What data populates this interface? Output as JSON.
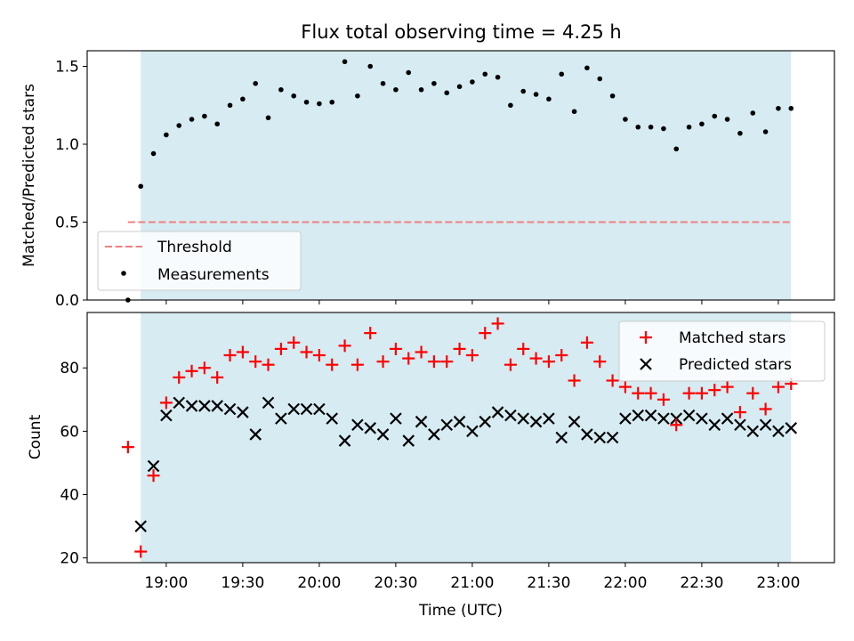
{
  "title": "Flux total observing time = 4.25 h",
  "colors": {
    "shade": "#add8e6",
    "threshold": "#f08080",
    "measurement": "#000000",
    "matched": "#ff0000",
    "predicted": "#000000"
  },
  "chart_data": [
    {
      "type": "scatter",
      "panel": "top",
      "ylabel": "Matched/Predicted stars",
      "xlabel": "",
      "ylim": [
        0,
        1.6
      ],
      "xlim": [
        "18:29",
        "23:22"
      ],
      "yticks": [
        "0.0",
        "0.5",
        "1.0",
        "1.5"
      ],
      "shaded_span": [
        "18:50",
        "23:05"
      ],
      "legend_position": "lower-left",
      "threshold": {
        "name": "Threshold",
        "value": 0.5,
        "x_range": [
          "18:45",
          "23:05"
        ]
      },
      "series": [
        {
          "name": "Measurements",
          "marker": "dot",
          "x": [
            "18:45",
            "18:50",
            "18:55",
            "19:00",
            "19:05",
            "19:10",
            "19:15",
            "19:20",
            "19:25",
            "19:30",
            "19:35",
            "19:40",
            "19:45",
            "19:50",
            "19:55",
            "20:00",
            "20:05",
            "20:10",
            "20:15",
            "20:20",
            "20:25",
            "20:30",
            "20:35",
            "20:40",
            "20:45",
            "20:50",
            "20:55",
            "21:00",
            "21:05",
            "21:10",
            "21:15",
            "21:20",
            "21:25",
            "21:30",
            "21:35",
            "21:40",
            "21:45",
            "21:50",
            "21:55",
            "22:00",
            "22:05",
            "22:10",
            "22:15",
            "22:20",
            "22:25",
            "22:30",
            "22:35",
            "22:40",
            "22:45",
            "22:50",
            "22:55",
            "23:00",
            "23:05"
          ],
          "y": [
            0.0,
            0.73,
            0.94,
            1.06,
            1.12,
            1.16,
            1.18,
            1.13,
            1.25,
            1.29,
            1.39,
            1.17,
            1.35,
            1.31,
            1.27,
            1.26,
            1.27,
            1.53,
            1.31,
            1.5,
            1.39,
            1.35,
            1.46,
            1.35,
            1.39,
            1.33,
            1.37,
            1.4,
            1.45,
            1.43,
            1.25,
            1.34,
            1.32,
            1.29,
            1.45,
            1.21,
            1.49,
            1.42,
            1.31,
            1.16,
            1.11,
            1.11,
            1.1,
            0.97,
            1.11,
            1.13,
            1.18,
            1.16,
            1.07,
            1.2,
            1.08,
            1.23,
            1.23
          ]
        }
      ]
    },
    {
      "type": "scatter",
      "panel": "bottom",
      "ylabel": "Count",
      "xlabel": "Time (UTC)",
      "ylim": [
        18.5,
        97.5
      ],
      "xlim": [
        "18:29",
        "23:22"
      ],
      "yticks": [
        "20",
        "40",
        "60",
        "80"
      ],
      "xticks": [
        "19:00",
        "19:30",
        "20:00",
        "20:30",
        "21:00",
        "21:30",
        "22:00",
        "22:30",
        "23:00"
      ],
      "shaded_span": [
        "18:50",
        "23:05"
      ],
      "legend_position": "upper-right",
      "x": [
        "18:45",
        "18:50",
        "18:55",
        "19:00",
        "19:05",
        "19:10",
        "19:15",
        "19:20",
        "19:25",
        "19:30",
        "19:35",
        "19:40",
        "19:45",
        "19:50",
        "19:55",
        "20:00",
        "20:05",
        "20:10",
        "20:15",
        "20:20",
        "20:25",
        "20:30",
        "20:35",
        "20:40",
        "20:45",
        "20:50",
        "20:55",
        "21:00",
        "21:05",
        "21:10",
        "21:15",
        "21:20",
        "21:25",
        "21:30",
        "21:35",
        "21:40",
        "21:45",
        "21:50",
        "21:55",
        "22:00",
        "22:05",
        "22:10",
        "22:15",
        "22:20",
        "22:25",
        "22:30",
        "22:35",
        "22:40",
        "22:45",
        "22:50",
        "22:55",
        "23:00",
        "23:05"
      ],
      "series": [
        {
          "name": "Matched stars",
          "marker": "plus",
          "values": [
            55,
            22,
            46,
            69,
            77,
            79,
            80,
            77,
            84,
            85,
            82,
            81,
            86,
            88,
            85,
            84,
            81,
            87,
            81,
            91,
            82,
            86,
            83,
            85,
            82,
            82,
            86,
            84,
            91,
            94,
            81,
            86,
            83,
            82,
            84,
            76,
            88,
            82,
            76,
            74,
            72,
            72,
            70,
            62,
            72,
            72,
            73,
            74,
            66,
            72,
            67,
            74,
            75
          ]
        },
        {
          "name": "Predicted stars",
          "marker": "x",
          "values": [
            null,
            30,
            49,
            65,
            69,
            68,
            68,
            68,
            67,
            66,
            59,
            69,
            64,
            67,
            67,
            67,
            64,
            57,
            62,
            61,
            59,
            64,
            57,
            63,
            59,
            62,
            63,
            60,
            63,
            66,
            65,
            64,
            63,
            64,
            58,
            63,
            59,
            58,
            58,
            64,
            65,
            65,
            64,
            64,
            65,
            64,
            62,
            64,
            62,
            60,
            62,
            60,
            61
          ]
        }
      ]
    }
  ]
}
